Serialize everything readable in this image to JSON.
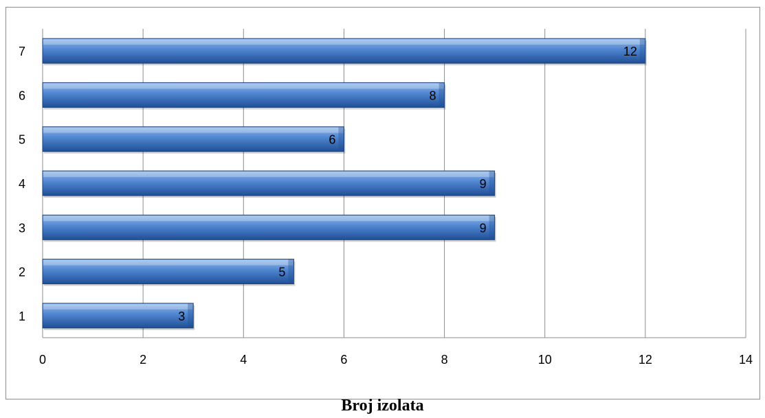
{
  "chart_data": {
    "type": "bar",
    "orientation": "horizontal",
    "categories": [
      "1",
      "2",
      "3",
      "4",
      "5",
      "6",
      "7"
    ],
    "values": [
      3,
      5,
      9,
      9,
      6,
      8,
      12
    ],
    "data_labels": [
      "3",
      "5",
      "9",
      "9",
      "6",
      "8",
      "12"
    ],
    "x_ticks": [
      "0",
      "2",
      "4",
      "6",
      "8",
      "10",
      "12",
      "14"
    ],
    "xlim": [
      0,
      14
    ],
    "title": "Broj izolata",
    "xlabel": "",
    "ylabel": "",
    "grid": "vertical",
    "legend": "none",
    "colors": {
      "bar_light": "#8fb8ea",
      "bar_mid": "#4f84cf",
      "bar_dark": "#1f4f96",
      "bar_edge": "#1b3f75",
      "grid": "#8c8c8c",
      "axis": "#8c8c8c"
    }
  }
}
